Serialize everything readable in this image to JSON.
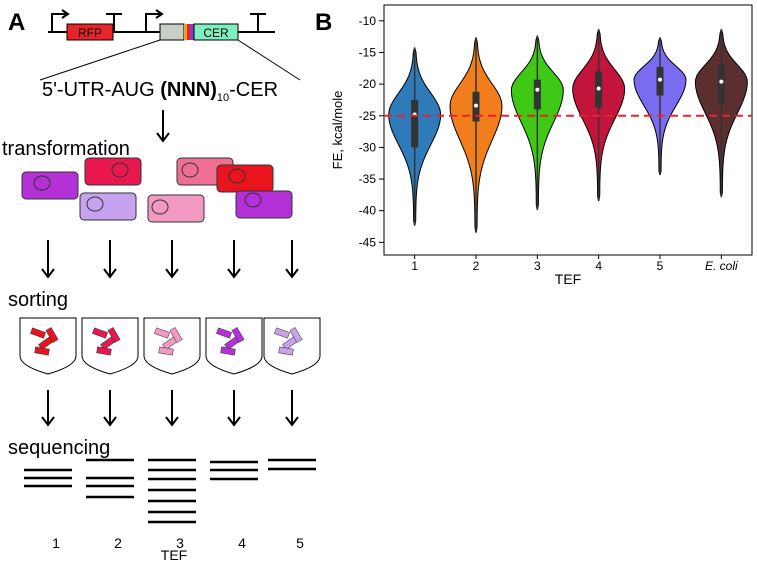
{
  "panel_a": {
    "label": "A",
    "construct": {
      "rfp": "RFP",
      "cer": "CER"
    },
    "sequence": {
      "prefix": "5'-UTR-AUG ",
      "repeat": "(NNN)",
      "count": "10",
      "suffix": "-CER"
    },
    "steps": [
      "transformation",
      "sorting",
      "sequencing"
    ],
    "lanes": [
      "1",
      "2",
      "3",
      "4",
      "5"
    ],
    "x_label": "TEF"
  },
  "chart_data": {
    "type": "violin",
    "panel_label": "B",
    "x_label": "TEF",
    "y_label": "FE, kcal/mole",
    "categories": [
      "1",
      "2",
      "3",
      "4",
      "5",
      "E. coli"
    ],
    "colors": [
      "#2f7bb9",
      "#f27d1d",
      "#3fc814",
      "#c3143b",
      "#7a6cf0",
      "#5b2f2f"
    ],
    "stats": [
      {
        "min": -42.3,
        "q1": -30.0,
        "median": -24.8,
        "q3": -22.5,
        "max": -14.3
      },
      {
        "min": -43.4,
        "q1": -25.9,
        "median": -23.4,
        "q3": -21.2,
        "max": -12.7
      },
      {
        "min": -39.8,
        "q1": -24.0,
        "median": -20.9,
        "q3": -19.3,
        "max": -12.4
      },
      {
        "min": -38.4,
        "q1": -23.7,
        "median": -20.7,
        "q3": -18.0,
        "max": -11.4
      },
      {
        "min": -34.3,
        "q1": -21.8,
        "median": -19.3,
        "q3": -17.3,
        "max": -12.7
      },
      {
        "min": -37.8,
        "q1": -23.1,
        "median": -19.6,
        "q3": -16.9,
        "max": -11.4
      }
    ],
    "reference_line": {
      "value": -25,
      "color": "#e8232a"
    },
    "ylim": [
      -47,
      -7.5
    ],
    "yticks": [
      -10,
      -15,
      -20,
      -25,
      -30,
      -35,
      -40,
      -45
    ]
  }
}
